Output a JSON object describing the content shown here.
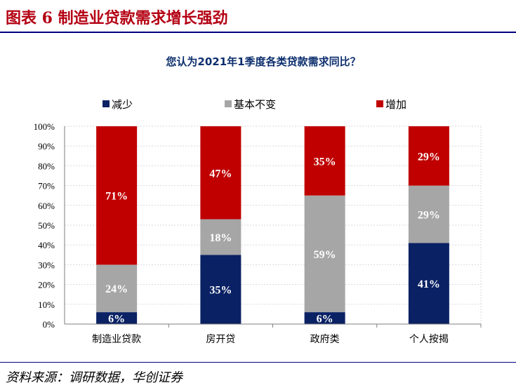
{
  "figure_title": "图表 6    制造业贷款需求增长强劲",
  "source": "资料来源：调研数据，华创证券",
  "colors": {
    "decrease": "#0a2164",
    "unchanged": "#a6a6a6",
    "increase": "#c00000",
    "title": "#b40012",
    "rule": "#000080"
  },
  "chart_data": {
    "type": "bar",
    "stacked": true,
    "title": "您认为2021年1季度各类贷款需求同比？",
    "categories": [
      "制造业贷款",
      "房开贷",
      "政府类",
      "个人按揭"
    ],
    "series": [
      {
        "name": "减少",
        "values": [
          6,
          35,
          6,
          41
        ],
        "labels": [
          "6%",
          "35%",
          "6%",
          "41%"
        ]
      },
      {
        "name": "基本不变",
        "values": [
          24,
          18,
          59,
          29
        ],
        "labels": [
          "24%",
          "18%",
          "59%",
          "29%"
        ]
      },
      {
        "name": "增加",
        "values": [
          71,
          47,
          35,
          29
        ],
        "labels": [
          "71%",
          "47%",
          "35%",
          "29%"
        ]
      }
    ],
    "ylim": [
      0,
      100
    ],
    "yticks": [
      "0%",
      "10%",
      "20%",
      "30%",
      "40%",
      "50%",
      "60%",
      "70%",
      "80%",
      "90%",
      "100%"
    ],
    "grid": true,
    "legend_position": "top"
  }
}
